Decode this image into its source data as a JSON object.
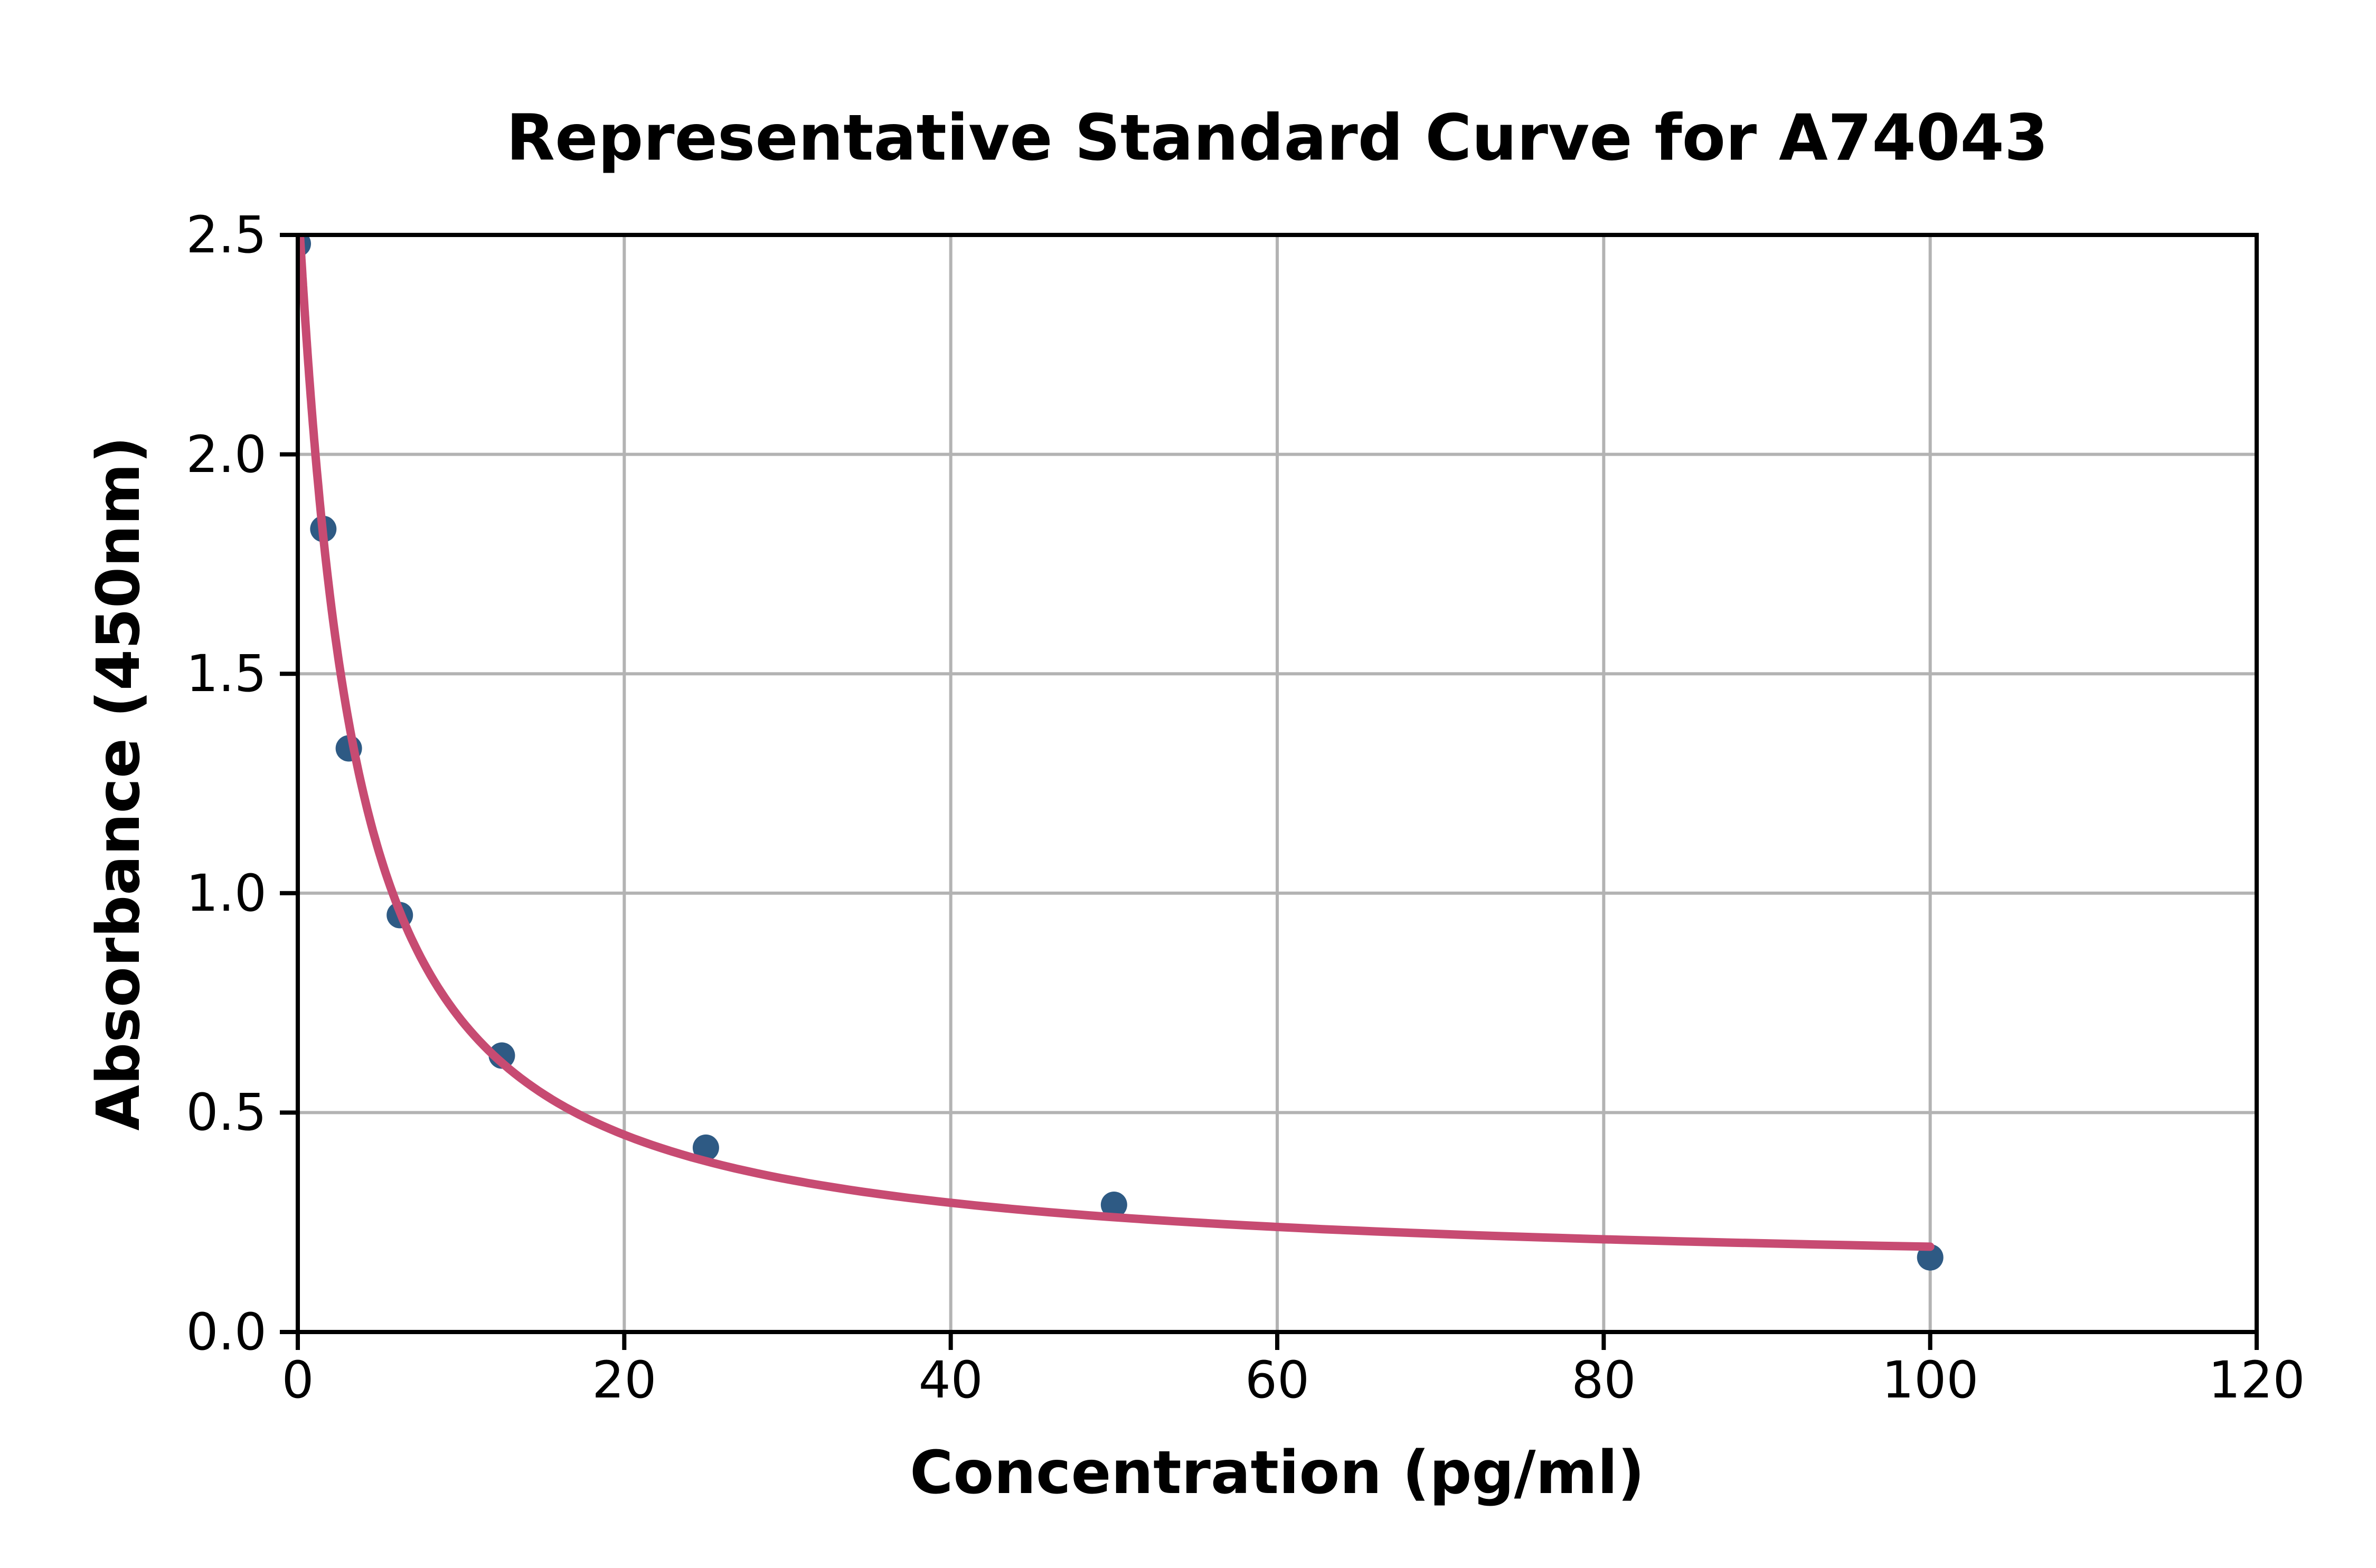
{
  "chart_data": {
    "type": "scatter",
    "title": "Representative Standard Curve for A74043",
    "xlabel": "Concentration (pg/ml)",
    "ylabel": "Absorbance (450nm)",
    "xlim": [
      0,
      120
    ],
    "ylim": [
      0.0,
      2.5
    ],
    "x_ticks": [
      0,
      20,
      40,
      60,
      80,
      100,
      120
    ],
    "x_ticklabels": [
      "0",
      "20",
      "40",
      "60",
      "80",
      "100",
      "120"
    ],
    "y_ticks": [
      0.0,
      0.5,
      1.0,
      1.5,
      2.0,
      2.5
    ],
    "y_ticklabels": [
      "0.0",
      "0.5",
      "1.0",
      "1.5",
      "2.0",
      "2.5"
    ],
    "grid": "on",
    "legend": "none",
    "points": [
      {
        "x": 0,
        "y": 2.48
      },
      {
        "x": 1.5625,
        "y": 1.83
      },
      {
        "x": 3.125,
        "y": 1.33
      },
      {
        "x": 6.25,
        "y": 0.95
      },
      {
        "x": 12.5,
        "y": 0.63
      },
      {
        "x": 25,
        "y": 0.42
      },
      {
        "x": 50,
        "y": 0.29
      },
      {
        "x": 100,
        "y": 0.17
      }
    ],
    "fit_curve": {
      "model": "4PL",
      "a": 2.58,
      "b": 1.05,
      "c": 3.3,
      "d": 0.128,
      "x_start": 0.12,
      "x_end": 100
    },
    "colors": {
      "point": "#2E5A84",
      "curve": "#C74B72",
      "grid": "#B3B3B3",
      "axis": "#000000",
      "background": "#FFFFFF"
    }
  }
}
